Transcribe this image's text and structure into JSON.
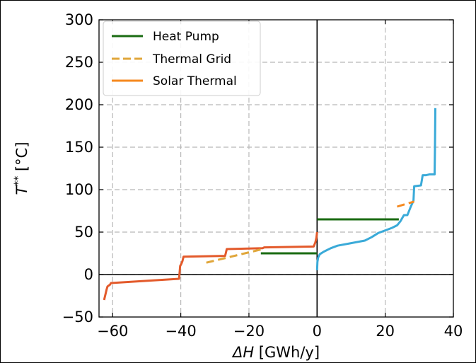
{
  "chart_data": {
    "type": "line",
    "xlabel_symbol": "ΔH",
    "xlabel_unit": " [GWh/y]",
    "ylabel_symbol": "T",
    "ylabel_sup": "**",
    "ylabel_unit": " [°C]",
    "xlim": [
      -64,
      40
    ],
    "ylim": [
      -50,
      300
    ],
    "xticks": [
      -60,
      -40,
      -20,
      0,
      20,
      40
    ],
    "xtick_labels": [
      "−60",
      "−40",
      "−20",
      "0",
      "20",
      "40"
    ],
    "yticks": [
      -50,
      0,
      50,
      100,
      150,
      200,
      250,
      300
    ],
    "ytick_labels": [
      "−50",
      "0",
      "50",
      "100",
      "150",
      "200",
      "250",
      "300"
    ],
    "grid": true,
    "legend_position": "top-left",
    "legend": [
      {
        "label": "Heat Pump",
        "color": "#1a6b12",
        "style": "solid"
      },
      {
        "label": "Thermal Grid",
        "color": "#e0a63a",
        "style": "dashed"
      },
      {
        "label": "Solar Thermal",
        "color": "#f5891f",
        "style": "solid"
      }
    ],
    "series": [
      {
        "color": "#e35a2b",
        "style": "solid",
        "x": [
          -62.5,
          -61.8,
          -61.5,
          -60.8,
          -60.5,
          -40.5,
          -40.2,
          -39.8,
          -39.5,
          -39.2,
          -27.0,
          -26.8,
          -26.5,
          -16.0,
          -15.5,
          -1.0,
          -0.8,
          -0.5,
          -0.2,
          0.0
        ],
        "y": [
          -30,
          -18,
          -14,
          -12,
          -10,
          -5,
          10,
          13,
          16,
          21,
          22,
          25,
          30,
          31,
          32,
          33,
          35,
          38,
          43,
          50
        ]
      },
      {
        "color": "#3aaad8",
        "style": "solid",
        "x": [
          0.0,
          0.1,
          0.3,
          0.8,
          2,
          4,
          6,
          10,
          14,
          16,
          18,
          20,
          22,
          23.5,
          24.5,
          25.5,
          26.5,
          27.5,
          28.3,
          28.5,
          30.5,
          31,
          32,
          33,
          34.5,
          34.6,
          34.7
        ],
        "y": [
          5,
          15,
          20,
          24,
          27,
          31,
          34,
          37,
          40,
          44,
          49,
          52,
          55,
          58,
          63,
          70,
          70,
          80,
          87,
          104,
          105,
          117,
          117,
          118,
          118,
          150,
          196
        ]
      },
      {
        "color": "#1a6b12",
        "style": "solid",
        "x": [
          -16.5,
          0.0
        ],
        "y": [
          25,
          25
        ]
      },
      {
        "color": "#1a6b12",
        "style": "solid",
        "x": [
          0.0,
          24.0
        ],
        "y": [
          65,
          65
        ]
      },
      {
        "color": "#e0a63a",
        "style": "dashed",
        "x": [
          -32.5,
          -16.0
        ],
        "y": [
          14,
          30
        ]
      },
      {
        "color": "#f5891f",
        "style": "dashed",
        "x": [
          23.5,
          28.5
        ],
        "y": [
          80,
          86
        ]
      }
    ],
    "reference_lines": {
      "x": 0,
      "y": 0,
      "color": "#000000"
    }
  }
}
